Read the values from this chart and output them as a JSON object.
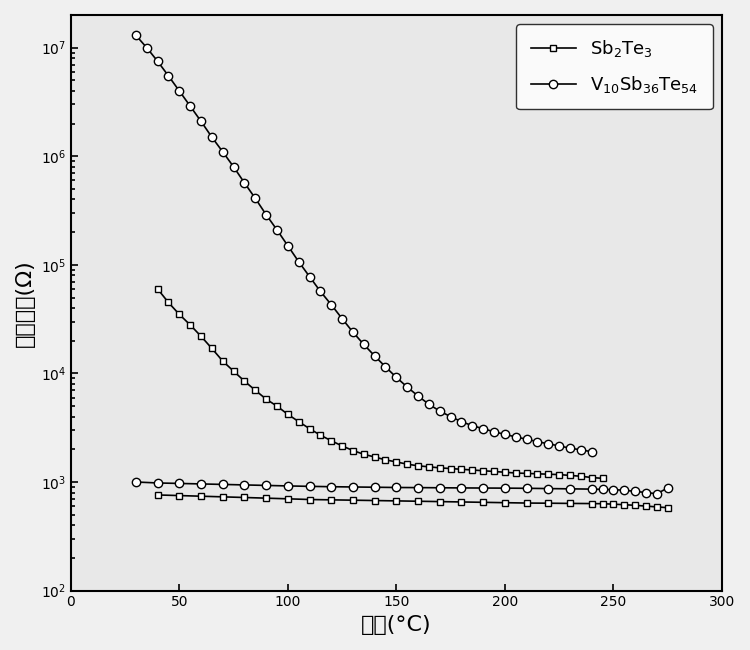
{
  "title": "",
  "xlabel": "温度(°C)",
  "ylabel": "薄膜电阯(Ω)",
  "xlim": [
    0,
    300
  ],
  "ylim": [
    100.0,
    20000000.0
  ],
  "xticks": [
    0,
    50,
    100,
    150,
    200,
    250,
    300
  ],
  "legend1_label": "Sb$_2$Te$_3$",
  "legend2_label": "V$_{10}$Sb$_{36}$Te$_{54}$",
  "background_color": "#f0f0f0",
  "line_color": "#000000",
  "sq_heating_x": [
    40,
    45,
    50,
    55,
    60,
    65,
    70,
    75,
    80,
    85,
    90,
    95,
    100,
    105,
    110,
    115,
    120,
    125,
    130,
    135,
    140,
    145,
    150,
    155,
    160,
    165,
    170,
    175,
    180,
    185,
    190,
    195,
    200,
    205,
    210,
    215,
    220,
    225,
    230,
    235,
    240,
    245
  ],
  "sq_heating_y": [
    60000,
    45000,
    35000,
    28000,
    22000,
    17000,
    13000,
    10500,
    8500,
    7000,
    5800,
    5000,
    4200,
    3600,
    3100,
    2700,
    2400,
    2150,
    1950,
    1800,
    1700,
    1600,
    1530,
    1460,
    1410,
    1380,
    1350,
    1330,
    1310,
    1290,
    1270,
    1250,
    1230,
    1210,
    1200,
    1190,
    1180,
    1170,
    1150,
    1130,
    1100,
    1080
  ],
  "sq_cooling_x": [
    40,
    50,
    60,
    70,
    80,
    90,
    100,
    110,
    120,
    130,
    140,
    150,
    160,
    170,
    180,
    190,
    200,
    210,
    220,
    230,
    240,
    245,
    250,
    255,
    260,
    265,
    270,
    275
  ],
  "sq_cooling_y": [
    760,
    750,
    740,
    730,
    720,
    710,
    700,
    690,
    685,
    680,
    675,
    670,
    665,
    660,
    655,
    650,
    645,
    640,
    638,
    635,
    633,
    631,
    625,
    618,
    610,
    600,
    590,
    580
  ],
  "circ_heating_x": [
    30,
    35,
    40,
    45,
    50,
    55,
    60,
    65,
    70,
    75,
    80,
    85,
    90,
    95,
    100,
    105,
    110,
    115,
    120,
    125,
    130,
    135,
    140,
    145,
    150,
    155,
    160,
    165,
    170,
    175,
    180,
    185,
    190,
    195,
    200,
    205,
    210,
    215,
    220,
    225,
    230,
    235,
    240
  ],
  "circ_heating_y": [
    13000000.0,
    10000000.0,
    7500000.0,
    5500000.0,
    4000000.0,
    2900000.0,
    2100000.0,
    1500000.0,
    1100000.0,
    800000,
    570000,
    410000,
    290000,
    210000,
    150000,
    107000,
    78000,
    57000,
    43000,
    32000,
    24000,
    18500,
    14500,
    11500,
    9200,
    7500,
    6200,
    5200,
    4500,
    4000,
    3600,
    3300,
    3100,
    2900,
    2750,
    2600,
    2480,
    2350,
    2250,
    2150,
    2050,
    1980,
    1900
  ],
  "circ_cooling_x": [
    30,
    40,
    50,
    60,
    70,
    80,
    90,
    100,
    110,
    120,
    130,
    140,
    150,
    160,
    170,
    180,
    190,
    200,
    210,
    220,
    230,
    240,
    245,
    250,
    255,
    260,
    265,
    270,
    275
  ],
  "circ_cooling_y": [
    1000,
    980,
    970,
    960,
    950,
    940,
    930,
    920,
    912,
    905,
    900,
    895,
    890,
    888,
    885,
    882,
    880,
    878,
    875,
    870,
    865,
    860,
    855,
    850,
    840,
    820,
    800,
    780,
    880
  ]
}
